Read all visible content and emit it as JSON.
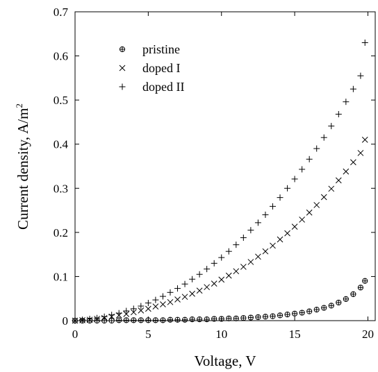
{
  "chart_data": {
    "type": "scatter",
    "xlabel": "Voltage, V",
    "ylabel_main": "Current density, A/m",
    "ylabel_sup": "2",
    "xlim": [
      0,
      20.5
    ],
    "ylim": [
      0,
      0.7
    ],
    "xticks": [
      0,
      5,
      10,
      15,
      20
    ],
    "yticks": [
      0,
      0.1,
      0.2,
      0.3,
      0.4,
      0.5,
      0.6,
      0.7
    ],
    "xtick_labels": [
      "0",
      "5",
      "10",
      "15",
      "20"
    ],
    "ytick_labels": [
      "0",
      "0.1",
      "0.2",
      "0.3",
      "0.4",
      "0.5",
      "0.6",
      "0.7"
    ],
    "legend_position": "top-left",
    "marker_color": "#000000",
    "series": [
      {
        "name": "pristine",
        "marker": "circle-plus",
        "x": [
          0,
          0.5,
          1,
          1.5,
          2,
          2.5,
          3,
          3.5,
          4,
          4.5,
          5,
          5.5,
          6,
          6.5,
          7,
          7.5,
          8,
          8.5,
          9,
          9.5,
          10,
          10.5,
          11,
          11.5,
          12,
          12.5,
          13,
          13.5,
          14,
          14.5,
          15,
          15.5,
          16,
          16.5,
          17,
          17.5,
          18,
          18.5,
          19,
          19.5,
          19.8
        ],
        "y": [
          0,
          0,
          0,
          0,
          0,
          0,
          0.001,
          0.001,
          0.001,
          0.001,
          0.001,
          0.001,
          0.001,
          0.002,
          0.002,
          0.002,
          0.003,
          0.003,
          0.003,
          0.004,
          0.004,
          0.005,
          0.005,
          0.006,
          0.007,
          0.008,
          0.009,
          0.01,
          0.012,
          0.014,
          0.016,
          0.018,
          0.021,
          0.025,
          0.029,
          0.034,
          0.041,
          0.049,
          0.06,
          0.075,
          0.09
        ]
      },
      {
        "name": "doped I",
        "marker": "x",
        "x": [
          0,
          0.5,
          1,
          1.5,
          2,
          2.5,
          3,
          3.5,
          4,
          4.5,
          5,
          5.5,
          6,
          6.5,
          7,
          7.5,
          8,
          8.5,
          9,
          9.5,
          10,
          10.5,
          11,
          11.5,
          12,
          12.5,
          13,
          13.5,
          14,
          14.5,
          15,
          15.5,
          16,
          16.5,
          17,
          17.5,
          18,
          18.5,
          19,
          19.5,
          19.8
        ],
        "y": [
          0,
          0.001,
          0.002,
          0.004,
          0.006,
          0.009,
          0.012,
          0.015,
          0.019,
          0.023,
          0.027,
          0.032,
          0.037,
          0.042,
          0.048,
          0.054,
          0.061,
          0.068,
          0.076,
          0.084,
          0.093,
          0.102,
          0.112,
          0.122,
          0.133,
          0.145,
          0.157,
          0.17,
          0.184,
          0.198,
          0.213,
          0.229,
          0.245,
          0.262,
          0.28,
          0.299,
          0.318,
          0.338,
          0.359,
          0.38,
          0.41
        ]
      },
      {
        "name": "doped II",
        "marker": "plus",
        "x": [
          0,
          0.5,
          1,
          1.5,
          2,
          2.5,
          3,
          3.5,
          4,
          4.5,
          5,
          5.5,
          6,
          6.5,
          7,
          7.5,
          8,
          8.5,
          9,
          9.5,
          10,
          10.5,
          11,
          11.5,
          12,
          12.5,
          13,
          13.5,
          14,
          14.5,
          15,
          15.5,
          16,
          16.5,
          17,
          17.5,
          18,
          18.5,
          19,
          19.5,
          19.8
        ],
        "y": [
          0,
          0.002,
          0.004,
          0.006,
          0.009,
          0.013,
          0.017,
          0.022,
          0.027,
          0.033,
          0.04,
          0.047,
          0.055,
          0.064,
          0.073,
          0.083,
          0.094,
          0.105,
          0.117,
          0.13,
          0.143,
          0.157,
          0.172,
          0.188,
          0.205,
          0.222,
          0.24,
          0.259,
          0.279,
          0.3,
          0.321,
          0.343,
          0.366,
          0.39,
          0.415,
          0.441,
          0.468,
          0.496,
          0.525,
          0.555,
          0.63
        ]
      }
    ]
  }
}
